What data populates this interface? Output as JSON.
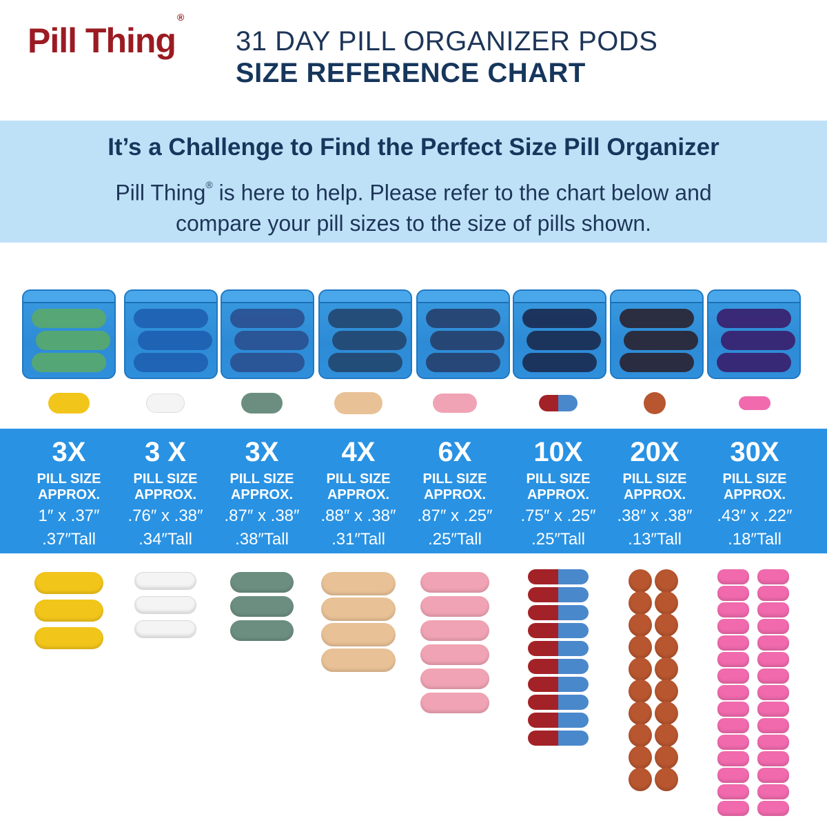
{
  "header": {
    "brand": "Pill Thing",
    "brand_mark": "®",
    "title_line1": "31 DAY PILL ORGANIZER PODS",
    "title_line2": "SIZE REFERENCE CHART"
  },
  "banner": {
    "heading": "It’s a Challenge to Find the Perfect Size Pill Organizer",
    "body_brand": "Pill Thing",
    "body_mark": "®",
    "body_rest_line1": " is here to help. Please refer to the chart below and",
    "body_line2": "compare your pill sizes to the size of pills shown."
  },
  "columns": [
    {
      "mult": "3X",
      "label1": "PILL SIZE",
      "label2": "APPROX.",
      "dims": "1″ x .37″",
      "tall": ".37″Tall",
      "count": 3,
      "pill_color": "#f2c51a"
    },
    {
      "mult": "3 X",
      "label1": "PILL SIZE",
      "label2": "APPROX.",
      "dims": ".76″ x .38″",
      "tall": ".34″Tall",
      "count": 3,
      "pill_color": "#f4f4f4"
    },
    {
      "mult": "3X",
      "label1": "PILL SIZE",
      "label2": "APPROX.",
      "dims": ".87″ x .38″",
      "tall": ".38″Tall",
      "count": 3,
      "pill_color": "#6b8e80"
    },
    {
      "mult": "4X",
      "label1": "PILL SIZE",
      "label2": "APPROX.",
      "dims": ".88″ x .38″",
      "tall": ".31″Tall",
      "count": 4,
      "pill_color": "#e8c196"
    },
    {
      "mult": "6X",
      "label1": "PILL SIZE",
      "label2": "APPROX.",
      "dims": ".87″ x .25″",
      "tall": ".25″Tall",
      "count": 6,
      "pill_color": "#f0a3b4"
    },
    {
      "mult": "10X",
      "label1": "PILL SIZE",
      "label2": "APPROX.",
      "dims": ".75″ x .25″",
      "tall": ".25″Tall",
      "count": 10,
      "pill_color": "#a32227"
    },
    {
      "mult": "20X",
      "label1": "PILL SIZE",
      "label2": "APPROX.",
      "dims": ".38″ x .38″",
      "tall": ".13″Tall",
      "count": 20,
      "pill_color": "#b8562f"
    },
    {
      "mult": "30X",
      "label1": "PILL SIZE",
      "label2": "APPROX.",
      "dims": ".43″ x .22″",
      "tall": ".18″Tall",
      "count": 30,
      "pill_color": "#f06aad"
    }
  ]
}
